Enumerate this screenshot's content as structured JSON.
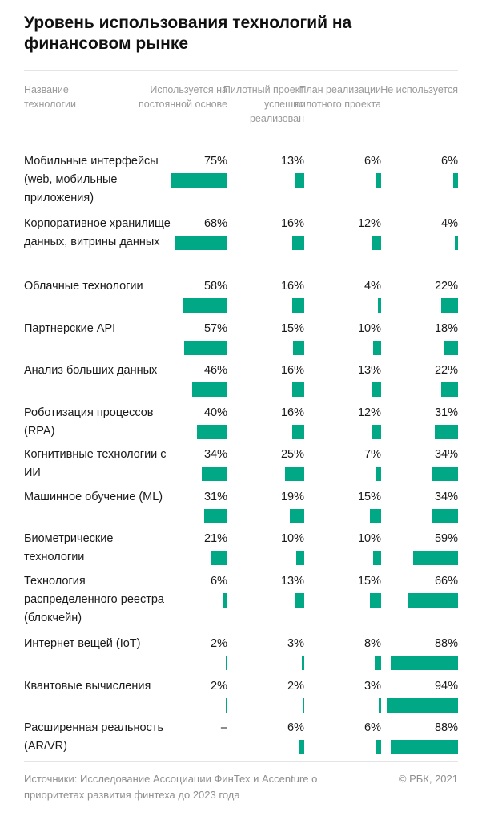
{
  "title": "Уровень использования технологий на финансовом рынке",
  "chart_data": {
    "type": "table",
    "columns": [
      {
        "label": "Используется на постоянной основе"
      },
      {
        "label": "Пилотный проект успешно реализован"
      },
      {
        "label": "План реализации пилотного проекта"
      },
      {
        "label": "Не используется"
      }
    ],
    "name_header": "Название технологии",
    "rows": [
      {
        "name": "Мобильные интерфейсы (web, мобильные приложения)",
        "values": [
          75,
          13,
          6,
          6
        ],
        "labels": [
          "75%",
          "13%",
          "6%",
          "6%"
        ]
      },
      {
        "name": "Корпоративное хранилище данных, витрины данных",
        "values": [
          68,
          16,
          12,
          4
        ],
        "labels": [
          "68%",
          "16%",
          "12%",
          "4%"
        ]
      },
      {
        "name": "Облачные технологии",
        "values": [
          58,
          16,
          4,
          22
        ],
        "labels": [
          "58%",
          "16%",
          "4%",
          "22%"
        ]
      },
      {
        "name": "Партнерские API",
        "values": [
          57,
          15,
          10,
          18
        ],
        "labels": [
          "57%",
          "15%",
          "10%",
          "18%"
        ]
      },
      {
        "name": "Анализ больших данных",
        "values": [
          46,
          16,
          13,
          22
        ],
        "labels": [
          "46%",
          "16%",
          "13%",
          "22%"
        ]
      },
      {
        "name": "Роботизация процессов (RPA)",
        "values": [
          40,
          16,
          12,
          31
        ],
        "labels": [
          "40%",
          "16%",
          "12%",
          "31%"
        ]
      },
      {
        "name": "Когнитивные технологии с ИИ",
        "values": [
          34,
          25,
          7,
          34
        ],
        "labels": [
          "34%",
          "25%",
          "7%",
          "34%"
        ]
      },
      {
        "name": "Машинное обучение (ML)",
        "values": [
          31,
          19,
          15,
          34
        ],
        "labels": [
          "31%",
          "19%",
          "15%",
          "34%"
        ]
      },
      {
        "name": "Биометрические технологии",
        "values": [
          21,
          10,
          10,
          59
        ],
        "labels": [
          "21%",
          "10%",
          "10%",
          "59%"
        ]
      },
      {
        "name": "Технология распределенного реестра (блокчейн)",
        "values": [
          6,
          13,
          15,
          66
        ],
        "labels": [
          "6%",
          "13%",
          "15%",
          "66%"
        ]
      },
      {
        "name": "Интернет вещей (IoT)",
        "values": [
          2,
          3,
          8,
          88
        ],
        "labels": [
          "2%",
          "3%",
          "8%",
          "88%"
        ]
      },
      {
        "name": "Квантовые вычисления",
        "values": [
          2,
          2,
          3,
          94
        ],
        "labels": [
          "2%",
          "2%",
          "3%",
          "94%"
        ]
      },
      {
        "name": "Расширенная реальность (AR/VR)",
        "values": [
          0,
          6,
          6,
          88
        ],
        "labels": [
          "–",
          "6%",
          "6%",
          "88%"
        ]
      }
    ]
  },
  "footer": {
    "source": "Источники: Исследование Ассоциации ФинТех и Accenture о приоритетах развития финтеха до 2023 года",
    "copyright": "© РБК, 2021"
  },
  "colors": {
    "bar": "#00a886"
  }
}
